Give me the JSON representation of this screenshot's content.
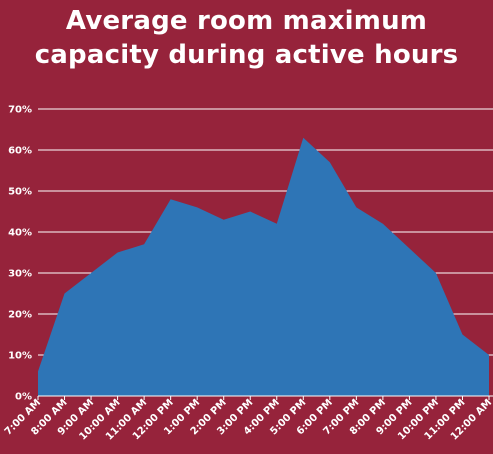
{
  "chart_data": {
    "type": "area",
    "title_lines": [
      "Average room maximum",
      "capacity during active hours"
    ],
    "categories": [
      "7:00 AM",
      "8:00 AM",
      "9:00 AM",
      "10:00 AM",
      "11:00 AM",
      "12:00 PM",
      "1:00 PM",
      "2:00 PM",
      "3:00 PM",
      "4:00 PM",
      "5:00 PM",
      "6:00 PM",
      "7:00 PM",
      "8:00 PM",
      "9:00 PM",
      "10:00 PM",
      "11:00 PM",
      "12:00 AM"
    ],
    "values": [
      6,
      25,
      30,
      35,
      37,
      48,
      46,
      43,
      45,
      42,
      63,
      57,
      46,
      42,
      36,
      30,
      15,
      10
    ],
    "y_ticks": [
      "0%",
      "10%",
      "20%",
      "30%",
      "40%",
      "50%",
      "60%",
      "70%"
    ],
    "ylim": [
      0,
      70
    ],
    "y_unit": "%",
    "grid": true,
    "legend": "none",
    "colors": {
      "background": "#96233b",
      "area": "#2e75b6",
      "grid": "#ffffff",
      "text": "#ffffff"
    }
  }
}
